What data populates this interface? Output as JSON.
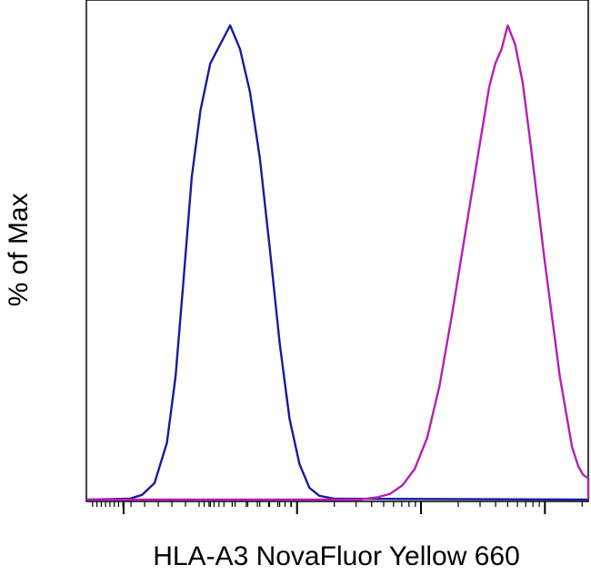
{
  "chart_data": {
    "type": "line",
    "title": "",
    "xlabel": "HLA-A3 NovaFluor Yellow 660",
    "ylabel": "% of Max",
    "xscale": "log",
    "xlim": [
      -0.3,
      3.75
    ],
    "ylim": [
      0,
      100
    ],
    "x_tick_labels": [],
    "y_tick_labels": [],
    "grid": false,
    "legend": "none",
    "series": [
      {
        "color": "#1a1a9c",
        "points": [
          [
            -0.3,
            0
          ],
          [
            0.05,
            0.2
          ],
          [
            0.15,
            1.0
          ],
          [
            0.25,
            3.5
          ],
          [
            0.35,
            12
          ],
          [
            0.42,
            26
          ],
          [
            0.48,
            45
          ],
          [
            0.55,
            68
          ],
          [
            0.62,
            82
          ],
          [
            0.7,
            92
          ],
          [
            0.78,
            96
          ],
          [
            0.86,
            100
          ],
          [
            0.94,
            95
          ],
          [
            1.02,
            86
          ],
          [
            1.1,
            72
          ],
          [
            1.18,
            53
          ],
          [
            1.26,
            33
          ],
          [
            1.34,
            17
          ],
          [
            1.42,
            7.5
          ],
          [
            1.5,
            2.5
          ],
          [
            1.58,
            0.8
          ],
          [
            1.7,
            0.2
          ],
          [
            3.75,
            0
          ]
        ]
      },
      {
        "color": "#b61fb5",
        "points": [
          [
            -0.3,
            0
          ],
          [
            1.9,
            0
          ],
          [
            2.05,
            0.5
          ],
          [
            2.15,
            1.2
          ],
          [
            2.25,
            3
          ],
          [
            2.35,
            6.5
          ],
          [
            2.45,
            13
          ],
          [
            2.55,
            24
          ],
          [
            2.65,
            39
          ],
          [
            2.75,
            55
          ],
          [
            2.85,
            71
          ],
          [
            2.95,
            87
          ],
          [
            3.0,
            92
          ],
          [
            3.05,
            95
          ],
          [
            3.1,
            100
          ],
          [
            3.16,
            96
          ],
          [
            3.22,
            88
          ],
          [
            3.28,
            76
          ],
          [
            3.34,
            63
          ],
          [
            3.4,
            50
          ],
          [
            3.46,
            38
          ],
          [
            3.52,
            26
          ],
          [
            3.58,
            17
          ],
          [
            3.62,
            11
          ],
          [
            3.67,
            7
          ],
          [
            3.71,
            5.2
          ],
          [
            3.75,
            4.5
          ],
          [
            3.79,
            3.6
          ],
          [
            3.84,
            2
          ],
          [
            3.9,
            0.8
          ],
          [
            3.98,
            0.2
          ],
          [
            4.05,
            0
          ]
        ]
      }
    ]
  }
}
